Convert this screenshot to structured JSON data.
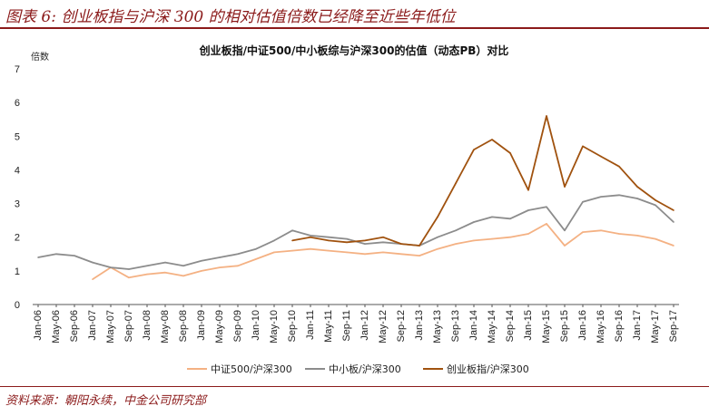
{
  "figure": {
    "title": "图表 6:  创业板指与沪深 300 的相对估值倍数已经降至近些年低位",
    "source": "资料来源：朝阳永续，中金公司研究部"
  },
  "chart_data": {
    "type": "line",
    "title": "创业板指/中证500/中小板综与沪深300的估值（动态PB）对比",
    "ylabel": "倍数",
    "xlabel": "",
    "ylim": [
      0,
      7
    ],
    "yticks": [
      0,
      1,
      2,
      3,
      4,
      5,
      6,
      7
    ],
    "grid": false,
    "legend_position": "bottom",
    "x": [
      "Jan-06",
      "May-06",
      "Sep-06",
      "Jan-07",
      "May-07",
      "Sep-07",
      "Jan-08",
      "May-08",
      "Sep-08",
      "Jan-09",
      "May-09",
      "Sep-09",
      "Jan-10",
      "May-10",
      "Sep-10",
      "Jan-11",
      "May-11",
      "Sep-11",
      "Jan-12",
      "May-12",
      "Sep-12",
      "Jan-13",
      "May-13",
      "Sep-13",
      "Jan-14",
      "May-14",
      "Sep-14",
      "Jan-15",
      "May-15",
      "Sep-15",
      "Jan-16",
      "May-16",
      "Sep-16",
      "Jan-17",
      "May-17",
      "Sep-17"
    ],
    "series": [
      {
        "name": "中证500/沪深300",
        "color": "#F4B183",
        "values": [
          null,
          null,
          null,
          0.75,
          1.1,
          0.8,
          0.9,
          0.95,
          0.85,
          1.0,
          1.1,
          1.15,
          1.35,
          1.55,
          1.6,
          1.65,
          1.6,
          1.55,
          1.5,
          1.55,
          1.5,
          1.45,
          1.65,
          1.8,
          1.9,
          1.95,
          2.0,
          2.1,
          2.4,
          1.75,
          2.15,
          2.2,
          2.1,
          2.05,
          1.95,
          1.75
        ]
      },
      {
        "name": "中小板/沪深300",
        "color": "#8C8C8C",
        "values": [
          1.4,
          1.5,
          1.45,
          1.25,
          1.1,
          1.05,
          1.15,
          1.25,
          1.15,
          1.3,
          1.4,
          1.5,
          1.65,
          1.9,
          2.2,
          2.05,
          2.0,
          1.95,
          1.8,
          1.85,
          1.8,
          1.75,
          2.0,
          2.2,
          2.45,
          2.6,
          2.55,
          2.8,
          2.9,
          2.2,
          3.05,
          3.2,
          3.25,
          3.15,
          2.95,
          2.45
        ]
      },
      {
        "name": "创业板指/沪深300",
        "color": "#A0520F",
        "values": [
          null,
          null,
          null,
          null,
          null,
          null,
          null,
          null,
          null,
          null,
          null,
          null,
          null,
          null,
          1.9,
          2.0,
          1.9,
          1.85,
          1.9,
          2.0,
          1.8,
          1.75,
          2.6,
          3.6,
          4.6,
          4.9,
          4.5,
          3.4,
          5.6,
          3.5,
          4.7,
          4.4,
          4.1,
          3.5,
          3.1,
          2.8
        ]
      }
    ]
  }
}
